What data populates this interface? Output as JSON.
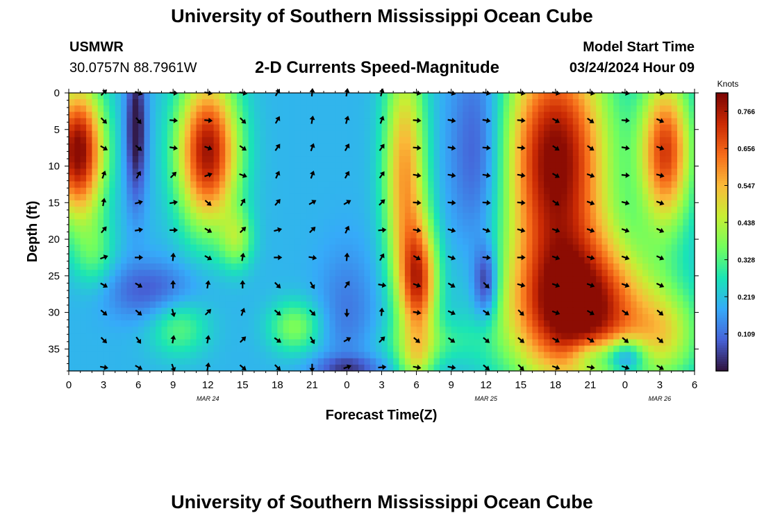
{
  "header": {
    "title": "University of Southern Mississippi Ocean Cube",
    "station": "USMWR",
    "coords": "30.0757N  88.7961W",
    "plot_title": "2-D Currents Speed-Magnitude",
    "model_label": "Model Start Time",
    "model_time": "03/24/2024 Hour 09"
  },
  "footer": {
    "title": "University of Southern Mississippi Ocean Cube"
  },
  "chart_data": {
    "type": "heatmap",
    "title": "2-D Currents Speed-Magnitude",
    "xlabel": "Forecast Time(Z)",
    "ylabel": "Depth (ft)",
    "x_tick_labels": [
      "0",
      "3",
      "6",
      "9",
      "12",
      "15",
      "18",
      "21",
      "0",
      "3",
      "6",
      "9",
      "12",
      "15",
      "18",
      "21",
      "0",
      "3",
      "6"
    ],
    "x_hours": [
      0,
      3,
      6,
      9,
      12,
      15,
      18,
      21,
      24,
      27,
      30,
      33,
      36,
      39,
      42,
      45,
      48,
      51,
      54
    ],
    "xlim": [
      0,
      54
    ],
    "date_labels": [
      {
        "label": "MAR 24",
        "hour": 12
      },
      {
        "label": "MAR 25",
        "hour": 36
      },
      {
        "label": "MAR 26",
        "hour": 51
      }
    ],
    "y_tick_labels": [
      "0",
      "5",
      "10",
      "15",
      "20",
      "25",
      "30",
      "35"
    ],
    "y_depths": [
      0,
      5,
      10,
      15,
      20,
      25,
      30,
      35
    ],
    "ylim": [
      0,
      38
    ],
    "colorbar": {
      "label": "Knots",
      "ticks": [
        "0.766",
        "0.656",
        "0.547",
        "0.438",
        "0.328",
        "0.219",
        "0.109"
      ],
      "tick_values": [
        0.766,
        0.656,
        0.547,
        0.438,
        0.328,
        0.219,
        0.109
      ],
      "range": [
        0,
        0.82
      ],
      "colors": [
        "#30123b",
        "#4662d7",
        "#36aaf9",
        "#1ae4b6",
        "#72fe5e",
        "#c7ef34",
        "#faba39",
        "#f66b19",
        "#ca2a04",
        "#7a0403"
      ]
    },
    "arrow_times": [
      3,
      6,
      9,
      12,
      15,
      18,
      21,
      24,
      27,
      30,
      33,
      36,
      39,
      42,
      45,
      48,
      51
    ],
    "arrow_depths": [
      0,
      3.75,
      7.5,
      11.25,
      15,
      18.75,
      22.5,
      26.25,
      30,
      33.75,
      37.5
    ],
    "arrow_directions_deg": [
      [
        45,
        110,
        95,
        100,
        100,
        30,
        5,
        10,
        15,
        100,
        105,
        100,
        100,
        100,
        100,
        100,
        100
      ],
      [
        135,
        140,
        95,
        95,
        135,
        30,
        10,
        15,
        20,
        95,
        100,
        100,
        95,
        120,
        125,
        95,
        115
      ],
      [
        120,
        130,
        100,
        110,
        125,
        35,
        20,
        30,
        35,
        95,
        100,
        95,
        95,
        125,
        125,
        100,
        110
      ],
      [
        20,
        30,
        45,
        70,
        110,
        25,
        20,
        30,
        35,
        100,
        100,
        100,
        100,
        120,
        110,
        95,
        105
      ],
      [
        10,
        75,
        80,
        130,
        30,
        40,
        60,
        60,
        45,
        95,
        95,
        95,
        95,
        125,
        110,
        105,
        110
      ],
      [
        40,
        80,
        90,
        120,
        45,
        75,
        45,
        25,
        85,
        100,
        105,
        110,
        105,
        110,
        110,
        110,
        115
      ],
      [
        70,
        90,
        5,
        120,
        10,
        90,
        100,
        5,
        30,
        120,
        110,
        95,
        90,
        110,
        105,
        110,
        115
      ],
      [
        120,
        120,
        0,
        10,
        0,
        135,
        150,
        35,
        100,
        110,
        120,
        135,
        105,
        110,
        110,
        110,
        115
      ],
      [
        130,
        130,
        165,
        45,
        20,
        130,
        135,
        180,
        5,
        100,
        115,
        125,
        135,
        110,
        120,
        125,
        130
      ],
      [
        135,
        145,
        10,
        10,
        45,
        125,
        150,
        60,
        45,
        130,
        125,
        130,
        130,
        120,
        120,
        130,
        130
      ],
      [
        100,
        120,
        160,
        10,
        130,
        135,
        180,
        70,
        85,
        100,
        100,
        130,
        135,
        110,
        100,
        110,
        120
      ]
    ]
  }
}
